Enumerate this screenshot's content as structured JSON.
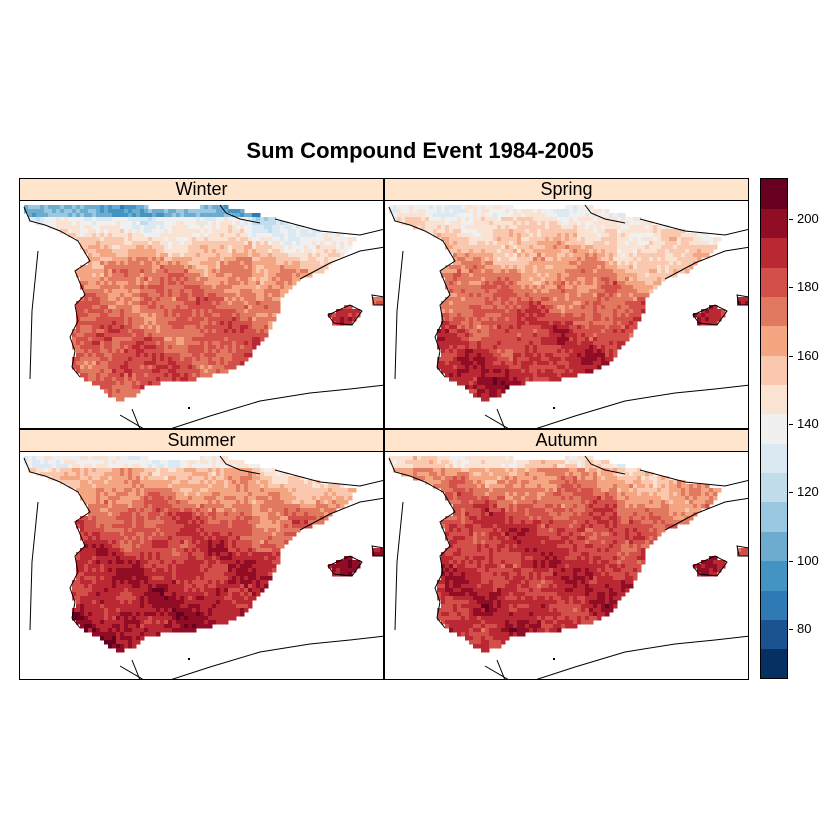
{
  "title": "Sum Compound Event 1984-2005",
  "panels": [
    {
      "label": "Winter"
    },
    {
      "label": "Spring"
    },
    {
      "label": "Summer"
    },
    {
      "label": "Autumn"
    }
  ],
  "colorkey": {
    "min": 66,
    "max": 212,
    "ticks": [
      80,
      100,
      120,
      140,
      160,
      180,
      200
    ],
    "colors": [
      "#053061",
      "#1a5390",
      "#2f79b5",
      "#4393c3",
      "#6eaccf",
      "#9ac8e0",
      "#c1ddec",
      "#dbeaf2",
      "#f0f0f0",
      "#fbe3d4",
      "#fac8ae",
      "#f4a582",
      "#e17960",
      "#d25049",
      "#ba2834",
      "#910d26",
      "#67001f"
    ]
  },
  "chart_data": {
    "type": "heatmap",
    "title": "Sum Compound Event 1984-2005",
    "panels": [
      "Winter",
      "Spring",
      "Summer",
      "Autumn"
    ],
    "colorbar_range": [
      66,
      212
    ],
    "colorbar_ticks": [
      80,
      100,
      120,
      140,
      160,
      180,
      200
    ],
    "region_summary": {
      "Winter": {
        "north_coast": 105,
        "north": 135,
        "center": 172,
        "south": 183
      },
      "Spring": {
        "north_coast": 140,
        "north": 148,
        "center": 168,
        "south": 196
      },
      "Summer": {
        "north_coast": 140,
        "north": 158,
        "center": 182,
        "south": 198
      },
      "Autumn": {
        "north_coast": 150,
        "north": 165,
        "center": 185,
        "south": 192
      }
    }
  }
}
